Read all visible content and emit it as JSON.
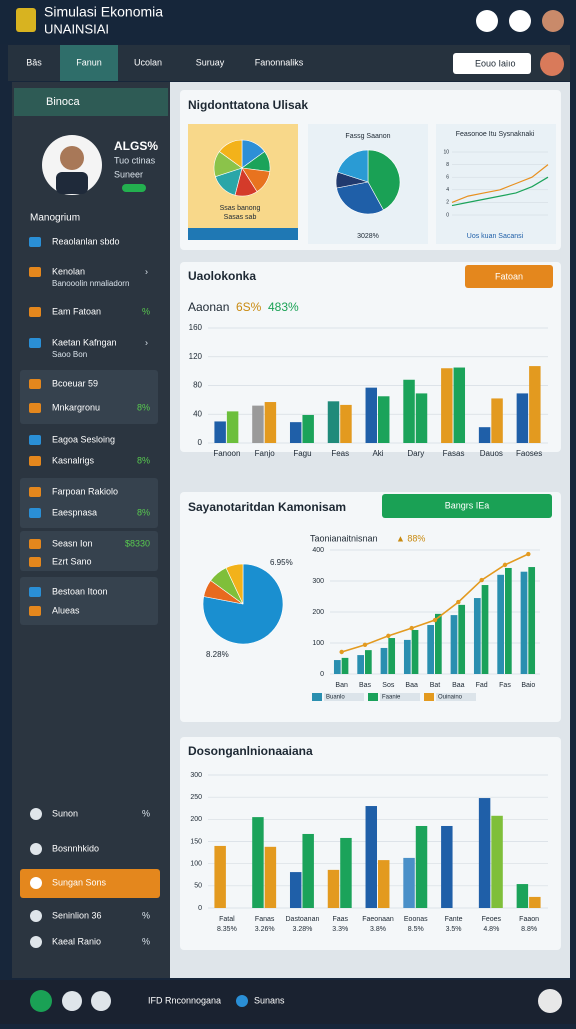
{
  "header": {
    "title": "Simulasi Ekonomia",
    "subtitle": "UNAINSIAI"
  },
  "nav": {
    "tabs": [
      "Bās",
      "Fanun",
      "Ucolan",
      "Suruay",
      "Fanonnaliks"
    ],
    "search": "Eouo Iaiıo"
  },
  "sidebar": {
    "title": "Binoca",
    "profile": {
      "stat": "ALGS%",
      "lines": [
        "Tuo ctinas",
        "Suneer"
      ]
    },
    "section": "Manogrium",
    "items": [
      {
        "label": "Reaolanlan sbdo"
      },
      {
        "label": "Kenolan",
        "detail": "Banooolin nmaliadorn"
      },
      {
        "label": "Eam Fatoan",
        "value": "%"
      },
      {
        "label": "Kaetan Kafngan",
        "detail": "Saoo Bon"
      },
      {
        "label": "Bcoeuar 59"
      },
      {
        "label": "Mnkargronu",
        "value": "8%"
      },
      {
        "label": "Eagoa Sesloing"
      },
      {
        "label": "Kasnalrigs",
        "value": "8%"
      },
      {
        "label": "Farpoan Rakiolo"
      },
      {
        "label": "Eaespnasa",
        "value": "8%"
      },
      {
        "label": "Seasn Ion",
        "value": "$8330"
      },
      {
        "label": "Ezrt Sano"
      },
      {
        "label": "Bestoan Itoon"
      },
      {
        "label": "Alueas"
      }
    ],
    "bottom": [
      {
        "label": "Sunon",
        "value": "%"
      },
      {
        "label": "Bosnnhkido"
      },
      {
        "label": "Sungan Sons"
      },
      {
        "label": "Seninlion 36",
        "value": "%"
      },
      {
        "label": "Kaeal Ranio",
        "value": "%"
      }
    ]
  },
  "cards": [
    {
      "title": "Nigdonttatona Ulisak"
    },
    {
      "title": "Uaolokonka",
      "button": "Fatoan",
      "subtitle": "Aaonan",
      "highlights": [
        "6S%",
        "483%"
      ]
    },
    {
      "title": "Sayanotaritdan Kamonisam",
      "button": "Bangrs IEa",
      "subtitle": "Taonianaitnisnan",
      "note": "▲ 88%"
    },
    {
      "title": "Dosonganlnionaaiana"
    }
  ],
  "chart_data": [
    {
      "type": "pie",
      "caption": "Ssas banong",
      "subcaption": "Sasas sab",
      "values": [
        15,
        12,
        14,
        13,
        16,
        15,
        15
      ],
      "colors": [
        "#2d8fd6",
        "#1ba35a",
        "#e8731f",
        "#d43b2a",
        "#2aa6a8",
        "#8bc34a",
        "#f3b21a"
      ]
    },
    {
      "type": "pie",
      "title": "Fassg Saanon",
      "caption": "3028%",
      "values": [
        42,
        30,
        8,
        20
      ],
      "colors": [
        "#1aa155",
        "#1f5fa8",
        "#213a6e",
        "#2a9bd4"
      ]
    },
    {
      "type": "line",
      "title": "Feasonoe Itu Sysnaknaki",
      "footer": "Uos kuan Sacansi",
      "x": [
        1,
        2,
        3,
        4,
        5,
        6,
        7
      ],
      "xlim": [
        1,
        7
      ],
      "ylim": [
        0,
        10
      ],
      "yticks": [
        0,
        2,
        4,
        6,
        8,
        10
      ],
      "series": [
        {
          "color": "#e8901f",
          "values": [
            2,
            3,
            3.5,
            4,
            5,
            6,
            8
          ]
        },
        {
          "color": "#1ba35a",
          "values": [
            1.5,
            2,
            2.5,
            3,
            3.5,
            4.5,
            6
          ]
        }
      ]
    },
    {
      "type": "bar",
      "categories": [
        "Fanoon",
        "Fanjo",
        "Fagu",
        "Feas",
        "Aki",
        "Dary",
        "Fasas",
        "Dauos",
        "Faoses"
      ],
      "ylim": [
        0,
        160
      ],
      "yticks": [
        0,
        40,
        80,
        120,
        160
      ],
      "series": [
        {
          "values": [
            30,
            52,
            29,
            58,
            77,
            88,
            104,
            22,
            69
          ],
          "colors": [
            "#1f5fa8",
            "#9a9a9a",
            "#1f5fa8",
            "#1f8a7a",
            "#1f5fa8",
            "#1ba35a",
            "#e39a1f",
            "#1f5fa8",
            "#1f5fa8"
          ]
        },
        {
          "values": [
            44,
            57,
            39,
            53,
            65,
            69,
            105,
            62,
            107
          ],
          "colors": [
            "#6cbf3c",
            "#e39a1f",
            "#1ba35a",
            "#e39a1f",
            "#1ba35a",
            "#1ba35a",
            "#1ba35a",
            "#e39a1f",
            "#e39a1f"
          ]
        }
      ]
    },
    {
      "type": "pie",
      "annotations": [
        "6.95%",
        "8.28%"
      ],
      "values": [
        78,
        7,
        8,
        7
      ],
      "colors": [
        "#1a8fd0",
        "#e86a1f",
        "#7fbf3a",
        "#f2b21a"
      ]
    },
    {
      "type": "bar",
      "categories": [
        "Ban",
        "Bas",
        "Sos",
        "Baa",
        "Bat",
        "Baa",
        "Fad",
        "Fas",
        "Baio"
      ],
      "ylim": [
        0,
        400
      ],
      "yticks": [
        0,
        100,
        200,
        300,
        400
      ],
      "series": [
        {
          "name": "Buanlo",
          "color": "#2a8fb0",
          "values": [
            45,
            61,
            84,
            110,
            158,
            190,
            245,
            320,
            330
          ]
        },
        {
          "name": "Faanie",
          "color": "#1aa15a",
          "values": [
            52,
            77,
            116,
            142,
            194,
            223,
            287,
            342,
            345
          ]
        },
        {
          "name": "Ouinaino",
          "type": "line",
          "color": "#e39a1f",
          "values": [
            71,
            94,
            123,
            148,
            174,
            232,
            303,
            352,
            387
          ]
        }
      ]
    },
    {
      "type": "bar",
      "categories": [
        "Fatal",
        "Fanas",
        "Dastoanan",
        "Faas",
        "Faeonaan",
        "Eoonas",
        "Fante",
        "Feoes",
        "Faaon"
      ],
      "sublabels": [
        "8.35%",
        "3.26%",
        "3.28%",
        "3.3%",
        "3.8%",
        "8.5%",
        "3.5%",
        "4.8%",
        "8.8%"
      ],
      "ylim": [
        0,
        300
      ],
      "yticks": [
        0,
        50,
        100,
        150,
        200,
        250,
        300
      ],
      "series": [
        {
          "values": [
            140,
            205,
            81,
            86,
            230,
            113,
            185,
            248,
            54
          ],
          "colors": [
            "#e39a1f",
            "#1ba35a",
            "#1f5fa8",
            "#e39a1f",
            "#1f5fa8",
            "#4a90c8",
            "#1f5fa8",
            "#1f5fa8",
            "#1ba35a"
          ]
        },
        {
          "values": [
            null,
            138,
            167,
            158,
            108,
            185,
            null,
            208,
            25
          ],
          "colors": [
            null,
            "#e39a1f",
            "#1ba35a",
            "#1ba35a",
            "#e39a1f",
            "#1ba35a",
            null,
            "#7fbf3a",
            "#e39a1f"
          ]
        }
      ]
    }
  ],
  "footer": {
    "items": [
      "IFD Rnconnogana",
      "Sunans"
    ]
  }
}
